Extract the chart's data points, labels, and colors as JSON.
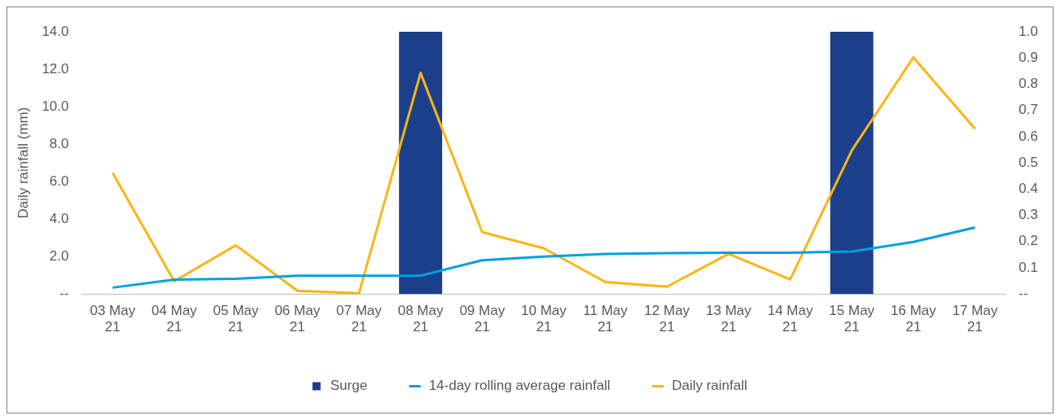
{
  "chart_data": {
    "type": "line",
    "ylabel": "Daily rainfall (mm)",
    "categories": [
      "03 May 21",
      "04 May 21",
      "05 May 21",
      "06 May 21",
      "07 May 21",
      "08 May 21",
      "09 May 21",
      "10 May 21",
      "11 May 21",
      "12 May 21",
      "13 May 21",
      "14 May 21",
      "15 May 21",
      "16 May 21",
      "17 May 21"
    ],
    "series": [
      {
        "name": "Surge",
        "type": "bar",
        "axis": "y2",
        "color": "#1b3f8b",
        "values": [
          0,
          0,
          0,
          0,
          0,
          1,
          0,
          0,
          0,
          0,
          0,
          0,
          1,
          0,
          0
        ]
      },
      {
        "name": "14-day rolling average rainfall",
        "color": "#00a1de",
        "values": [
          0.34,
          0.77,
          0.81,
          0.98,
          0.98,
          0.98,
          1.8,
          2.0,
          2.14,
          2.18,
          2.2,
          2.2,
          2.27,
          2.78,
          3.55
        ]
      },
      {
        "name": "Daily rainfall",
        "color": "#fbb514",
        "values": [
          6.46,
          0.68,
          2.6,
          0.17,
          0.04,
          11.8,
          3.3,
          2.44,
          0.64,
          0.39,
          2.14,
          0.77,
          7.66,
          12.63,
          8.82
        ]
      }
    ],
    "ylim": [
      0,
      14
    ],
    "yticks": [
      {
        "value": 0,
        "label": "--"
      },
      {
        "value": 2,
        "label": "2.0"
      },
      {
        "value": 4,
        "label": "4.0"
      },
      {
        "value": 6,
        "label": "6.0"
      },
      {
        "value": 8,
        "label": "8.0"
      },
      {
        "value": 10,
        "label": "10.0"
      },
      {
        "value": 12,
        "label": "12.0"
      },
      {
        "value": 14,
        "label": "14.0"
      }
    ],
    "y2lim": [
      0,
      1
    ],
    "y2ticks": [
      {
        "value": 0,
        "label": "--"
      },
      0.1,
      0.2,
      0.3,
      0.4,
      0.5,
      0.6,
      0.7,
      0.8,
      0.9,
      {
        "value": 1,
        "label": "1.0"
      }
    ],
    "grid": false,
    "legend": "bottom",
    "marker": "none",
    "line_style": "solid"
  }
}
